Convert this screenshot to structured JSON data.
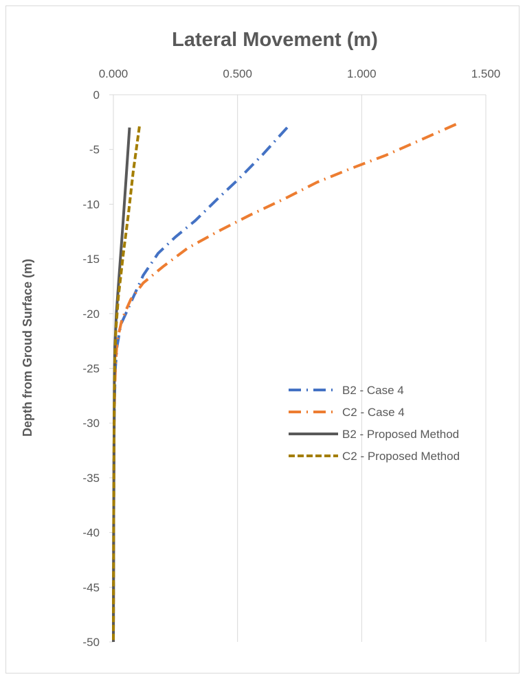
{
  "chart_data": {
    "type": "line",
    "title": "Lateral Movement (m)",
    "xlabel": "",
    "ylabel": "Depth from Groud Surface (m)",
    "xlim": [
      0,
      1.5
    ],
    "ylim": [
      -50,
      0
    ],
    "x_ticks": [
      "0.000",
      "0.500",
      "1.000",
      "1.500"
    ],
    "x_tick_values": [
      0,
      0.5,
      1.0,
      1.5
    ],
    "y_ticks": [
      "0",
      "-5",
      "-10",
      "-15",
      "-20",
      "-25",
      "-30",
      "-35",
      "-40",
      "-45",
      "-50"
    ],
    "y_tick_values": [
      0,
      -5,
      -10,
      -15,
      -20,
      -25,
      -30,
      -35,
      -40,
      -45,
      -50
    ],
    "x_axis_position": "top",
    "grid": "vertical",
    "legend_position": "right-middle",
    "series": [
      {
        "name": "B2 - Case 4",
        "color": "#4472C4",
        "dash": "dash-dot",
        "points": [
          [
            0.7,
            -3
          ],
          [
            0.6,
            -5.5
          ],
          [
            0.5,
            -7.8
          ],
          [
            0.42,
            -9.5
          ],
          [
            0.33,
            -11.5
          ],
          [
            0.25,
            -13
          ],
          [
            0.18,
            -14.5
          ],
          [
            0.12,
            -16.5
          ],
          [
            0.09,
            -18
          ],
          [
            0.05,
            -20
          ],
          [
            0.03,
            -21
          ],
          [
            0.015,
            -23
          ],
          [
            0.008,
            -25
          ],
          [
            0.005,
            -27.5
          ],
          [
            0.003,
            -30
          ],
          [
            0.002,
            -35
          ],
          [
            0.001,
            -40
          ],
          [
            0.0005,
            -45
          ],
          [
            0.0,
            -50
          ]
        ]
      },
      {
        "name": "C2 - Case 4",
        "color": "#ED7D31",
        "dash": "dash-dot",
        "points": [
          [
            1.38,
            -2.7
          ],
          [
            1.25,
            -4
          ],
          [
            1.1,
            -5.5
          ],
          [
            0.95,
            -6.8
          ],
          [
            0.82,
            -8
          ],
          [
            0.69,
            -9.5
          ],
          [
            0.55,
            -11
          ],
          [
            0.42,
            -12.5
          ],
          [
            0.3,
            -14
          ],
          [
            0.2,
            -15.7
          ],
          [
            0.12,
            -17.2
          ],
          [
            0.07,
            -18.7
          ],
          [
            0.035,
            -20.5
          ],
          [
            0.015,
            -22.5
          ],
          [
            0.008,
            -25
          ],
          [
            0.005,
            -27.5
          ],
          [
            0.003,
            -30
          ],
          [
            0.002,
            -35
          ],
          [
            0.001,
            -40
          ],
          [
            0.0005,
            -45
          ],
          [
            0.0,
            -50
          ]
        ]
      },
      {
        "name": "B2 - Proposed Method",
        "color": "#595959",
        "dash": "solid",
        "points": [
          [
            0.065,
            -3
          ],
          [
            0.05,
            -8
          ],
          [
            0.038,
            -12
          ],
          [
            0.025,
            -16
          ],
          [
            0.012,
            -20
          ],
          [
            0.006,
            -23
          ],
          [
            0.004,
            -26
          ],
          [
            0.003,
            -30
          ],
          [
            0.002,
            -35
          ],
          [
            0.001,
            -40
          ],
          [
            0.0005,
            -45
          ],
          [
            0.0,
            -50
          ]
        ]
      },
      {
        "name": "C2 - Proposed Method",
        "color": "#A47E00",
        "dash": "dashed",
        "points": [
          [
            0.105,
            -2.9
          ],
          [
            0.08,
            -7
          ],
          [
            0.06,
            -11
          ],
          [
            0.04,
            -14.5
          ],
          [
            0.02,
            -18.5
          ],
          [
            0.01,
            -21.5
          ],
          [
            0.006,
            -24
          ],
          [
            0.004,
            -27
          ],
          [
            0.003,
            -30
          ],
          [
            0.002,
            -35
          ],
          [
            0.001,
            -40
          ],
          [
            0.0005,
            -45
          ],
          [
            0.0,
            -50
          ]
        ]
      }
    ]
  }
}
